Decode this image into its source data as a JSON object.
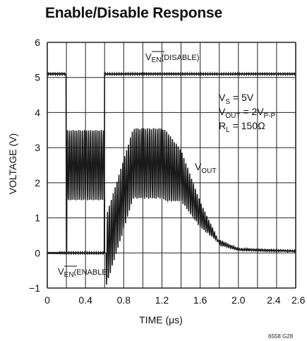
{
  "chart_data": {
    "type": "line",
    "title": "Enable/Disable Response",
    "xlabel": "TIME (μs)",
    "ylabel": "VOLTAGE (V)",
    "xlim": [
      0,
      2.6
    ],
    "ylim": [
      -1,
      6
    ],
    "x_ticks": [
      "0",
      "0.4",
      "0.8",
      "1.2",
      "1.6",
      "2.0",
      "2.4",
      "2.6"
    ],
    "x_tick_values": [
      0,
      0.4,
      0.8,
      1.2,
      1.6,
      2.0,
      2.4,
      2.6
    ],
    "y_ticks": [
      "−1",
      "0",
      "1",
      "2",
      "3",
      "4",
      "5",
      "6"
    ],
    "y_tick_values": [
      -1,
      0,
      1,
      2,
      3,
      4,
      5,
      6
    ],
    "grid": true,
    "series": [
      {
        "name": "EN",
        "x": [
          0,
          0.2,
          0.2,
          0.6,
          0.6,
          2.6
        ],
        "y": [
          5.1,
          5.1,
          0,
          0,
          5.1,
          5.1
        ]
      },
      {
        "name": "VOUT",
        "x": [
          0,
          0.2,
          0.21,
          0.6,
          0.61,
          0.9,
          1.2,
          1.4,
          1.6,
          1.8,
          2.0,
          2.6
        ],
        "y": [
          0,
          0,
          2.5,
          2.5,
          0,
          2.55,
          2.55,
          2.2,
          1.1,
          0.3,
          0.1,
          0.05
        ],
        "oscillation_p_p": 2,
        "oscillation_center": 2.55
      }
    ],
    "annotations": {
      "en_disable": {
        "main": "V",
        "sub": "EN",
        "suffix": "(DISABLE)"
      },
      "en_enable": {
        "main": "V",
        "sub": "EN",
        "suffix": "(ENABLE)"
      },
      "vout_label": {
        "main": "V",
        "sub": "OUT"
      },
      "conditions": [
        {
          "main": "V",
          "sub": "S",
          "rest": " = 5V"
        },
        {
          "main": "V",
          "sub": "OUT",
          "rest": " = 2V",
          "sub2": "P-P"
        },
        {
          "main": "R",
          "sub": "L",
          "rest": " = 150Ω"
        }
      ]
    },
    "figure_code": "6558 G28"
  },
  "colors": {
    "trace": "#1a1a1a",
    "grid": "#222222",
    "background": "#ffffff"
  }
}
